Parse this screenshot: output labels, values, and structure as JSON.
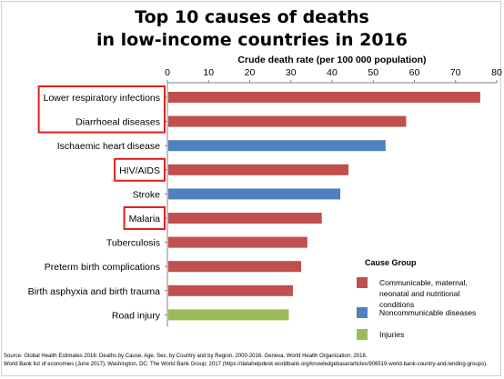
{
  "chart_data": {
    "type": "bar",
    "orientation": "horizontal",
    "title_line1": "Top 10 causes of deaths",
    "title_line2": "in low-income countries in 2016",
    "xlabel": "Crude death rate (per 100 000 population)",
    "xlim": [
      0,
      80
    ],
    "xticks": [
      "0",
      "10",
      "20",
      "30",
      "40",
      "50",
      "60",
      "70",
      "80"
    ],
    "categories": [
      "Lower respiratory infections",
      "Diarrhoeal diseases",
      "Ischaemic heart disease",
      "HIV/AIDS",
      "Stroke",
      "Malaria",
      "Tuberculosis",
      "Preterm birth complications",
      "Birth asphyxia and birth trauma",
      "Road injury"
    ],
    "values": [
      76,
      58,
      53,
      44,
      42,
      37.5,
      34,
      32.5,
      30.5,
      29.5
    ],
    "groups": [
      "communicable",
      "communicable",
      "noncommunicable",
      "communicable",
      "noncommunicable",
      "communicable",
      "communicable",
      "communicable",
      "communicable",
      "injuries"
    ],
    "highlighted": [
      true,
      true,
      false,
      true,
      false,
      true,
      false,
      false,
      false,
      false
    ],
    "highlight_color": "#e0201c",
    "grid": false,
    "legend": {
      "title": "Cause Group",
      "placement": "bottom-right",
      "items": [
        {
          "key": "communicable",
          "label": "Communicable, maternal, neonatal and nutritional conditions",
          "color": "#c0504d"
        },
        {
          "key": "noncommunicable",
          "label": "Noncommunicable diseases",
          "color": "#4f81bd"
        },
        {
          "key": "injuries",
          "label": "Injuries",
          "color": "#9bbb59"
        }
      ]
    }
  },
  "source": {
    "line1": "Source: Global Health Estimates 2016: Deaths by Cause, Age, Sex, by Country and by Region, 2000-2016. Geneva, World Health Organization; 2018.",
    "line2": "World Bank list of economies (June 2017). Washington, DC: The World Bank Group; 2017 (https://datahelpdesk.worldbank.org/knowledgebase/articles/906519-world-bank-country-and-lending-groups)."
  }
}
